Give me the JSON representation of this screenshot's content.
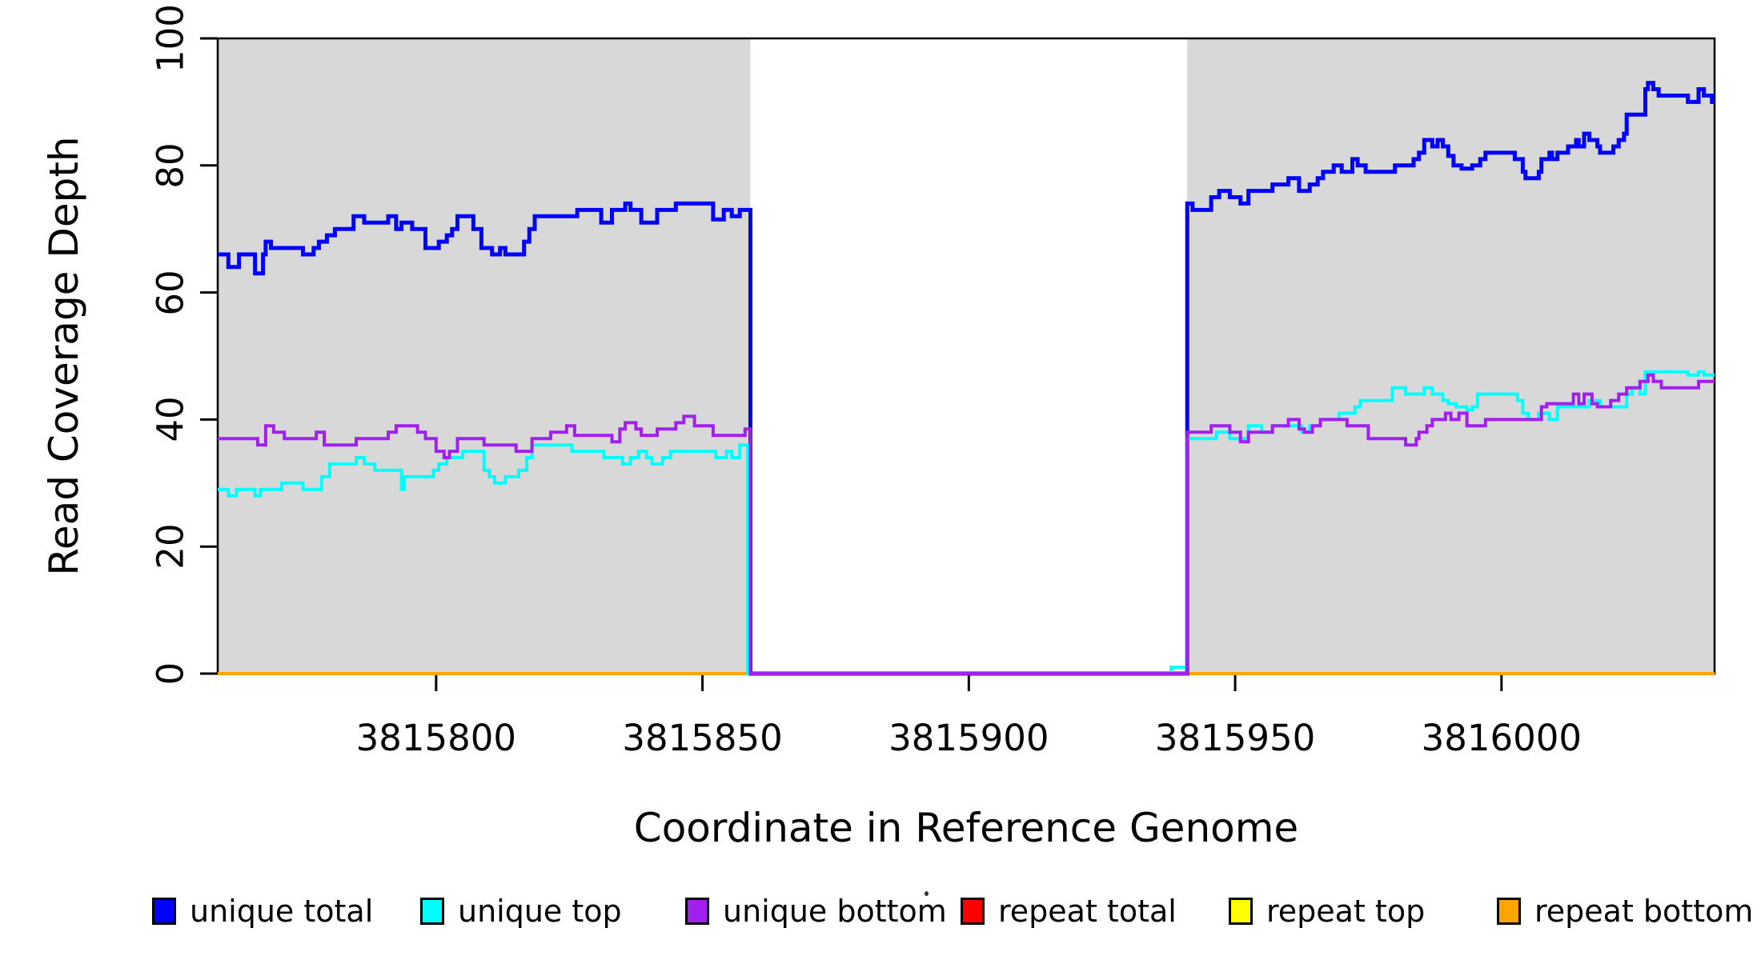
{
  "chart_data": {
    "type": "line",
    "subtype": "step",
    "title": "",
    "xlabel": "Coordinate in Reference Genome",
    "ylabel": "Read Coverage Depth",
    "xlim": [
      3815759,
      3816040
    ],
    "ylim": [
      0,
      100
    ],
    "x_ticks": [
      3815800,
      3815850,
      3815900,
      3815950,
      3816000
    ],
    "y_ticks": [
      0,
      20,
      40,
      60,
      80,
      100
    ],
    "grid": false,
    "legend_position": "bottom",
    "shading_color": "#d8d8d8",
    "shaded_regions": [
      [
        3815759,
        3815859
      ],
      [
        3815941,
        3816040
      ]
    ],
    "uncovered_gap": [
      3815859,
      3815941
    ],
    "legend": [
      {
        "label": "unique total",
        "color": "#0000ff"
      },
      {
        "label": "unique top",
        "color": "#00ffff"
      },
      {
        "label": "unique bottom",
        "color": "#a020f0"
      },
      {
        "label": "repeat total",
        "color": "#ff0000"
      },
      {
        "label": "repeat top",
        "color": "#ffff00"
      },
      {
        "label": "repeat bottom",
        "color": "#ffa500"
      }
    ],
    "series": [
      {
        "name": "repeat total",
        "color": "#ff0000",
        "width": 4,
        "points": [
          [
            3815759,
            0
          ]
        ]
      },
      {
        "name": "repeat top",
        "color": "#ffff00",
        "width": 4,
        "points": [
          [
            3815759,
            0
          ]
        ]
      },
      {
        "name": "repeat bottom",
        "color": "#ffa500",
        "width": 4,
        "points": [
          [
            3815759,
            0
          ]
        ]
      },
      {
        "name": "unique total",
        "color": "#0000ff",
        "width": 5,
        "points": [
          [
            3815759,
            66
          ],
          [
            3815761,
            64
          ],
          [
            3815763,
            66
          ],
          [
            3815766,
            63
          ],
          [
            3815767.5,
            66
          ],
          [
            3815768,
            68
          ],
          [
            3815769,
            67
          ],
          [
            3815775,
            66
          ],
          [
            3815777,
            67
          ],
          [
            3815778,
            68
          ],
          [
            3815779.5,
            69
          ],
          [
            3815781,
            70
          ],
          [
            3815784.5,
            72
          ],
          [
            3815786.5,
            71
          ],
          [
            3815791,
            72
          ],
          [
            3815792.5,
            70
          ],
          [
            3815793.5,
            71
          ],
          [
            3815795.5,
            70
          ],
          [
            3815798,
            67
          ],
          [
            3815800.5,
            68
          ],
          [
            3815802,
            69
          ],
          [
            3815803,
            70
          ],
          [
            3815804,
            72
          ],
          [
            3815807,
            70
          ],
          [
            3815808.5,
            67
          ],
          [
            3815810.5,
            66
          ],
          [
            3815812,
            67
          ],
          [
            3815813,
            66
          ],
          [
            3815816.5,
            68
          ],
          [
            3815817.5,
            70
          ],
          [
            3815818.5,
            72
          ],
          [
            3815826.5,
            73
          ],
          [
            3815831,
            71
          ],
          [
            3815833,
            73
          ],
          [
            3815835.5,
            74
          ],
          [
            3815836.5,
            73
          ],
          [
            3815838.5,
            71
          ],
          [
            3815841.5,
            73
          ],
          [
            3815845,
            74
          ],
          [
            3815852,
            71.5
          ],
          [
            3815854,
            73
          ],
          [
            3815855.5,
            72
          ],
          [
            3815857,
            73
          ],
          [
            3815859,
            0
          ],
          [
            3815941,
            74
          ],
          [
            3815942,
            73
          ],
          [
            3815945.5,
            75
          ],
          [
            3815947,
            76
          ],
          [
            3815949,
            75
          ],
          [
            3815951,
            74
          ],
          [
            3815952.5,
            76
          ],
          [
            3815957,
            77
          ],
          [
            3815960,
            78
          ],
          [
            3815962,
            76
          ],
          [
            3815964,
            77
          ],
          [
            3815965.5,
            78
          ],
          [
            3815966.5,
            79
          ],
          [
            3815968.5,
            80
          ],
          [
            3815970,
            79
          ],
          [
            3815972,
            81
          ],
          [
            3815973,
            80
          ],
          [
            3815974.5,
            79
          ],
          [
            3815980,
            80
          ],
          [
            3815983.5,
            81
          ],
          [
            3815984.5,
            82
          ],
          [
            3815985.5,
            84
          ],
          [
            3815987,
            83
          ],
          [
            3815988,
            84
          ],
          [
            3815989,
            83
          ],
          [
            3815990,
            81.5
          ],
          [
            3815991,
            80
          ],
          [
            3815992.5,
            79.5
          ],
          [
            3815994.5,
            80
          ],
          [
            3815996,
            81
          ],
          [
            3815997,
            82
          ],
          [
            3816002.5,
            81
          ],
          [
            3816004,
            79
          ],
          [
            3816004.5,
            78
          ],
          [
            3816007,
            79
          ],
          [
            3816007.5,
            81
          ],
          [
            3816009,
            82
          ],
          [
            3816009.5,
            81
          ],
          [
            3816010.5,
            82
          ],
          [
            3816012.5,
            83
          ],
          [
            3816014,
            84
          ],
          [
            3816014.5,
            83
          ],
          [
            3816015.5,
            85
          ],
          [
            3816016.5,
            84
          ],
          [
            3816018,
            83
          ],
          [
            3816018.5,
            82
          ],
          [
            3816021,
            83
          ],
          [
            3816022,
            84
          ],
          [
            3816023,
            85
          ],
          [
            3816023.5,
            88
          ],
          [
            3816027,
            92
          ],
          [
            3816027.5,
            93
          ],
          [
            3816028.5,
            92
          ],
          [
            3816029.5,
            91
          ],
          [
            3816035,
            90
          ],
          [
            3816037,
            92
          ],
          [
            3816038,
            91
          ],
          [
            3816039.5,
            90
          ]
        ]
      },
      {
        "name": "unique top",
        "color": "#00ffff",
        "width": 4,
        "points": [
          [
            3815759,
            29
          ],
          [
            3815761,
            28
          ],
          [
            3815762.5,
            29
          ],
          [
            3815766,
            28
          ],
          [
            3815767,
            29
          ],
          [
            3815771,
            30
          ],
          [
            3815775,
            29
          ],
          [
            3815778.5,
            31
          ],
          [
            3815780,
            33
          ],
          [
            3815785,
            34
          ],
          [
            3815786.5,
            33
          ],
          [
            3815788.5,
            32
          ],
          [
            3815793.5,
            29
          ],
          [
            3815794,
            31
          ],
          [
            3815799.5,
            32
          ],
          [
            3815800.5,
            33
          ],
          [
            3815802,
            34
          ],
          [
            3815805,
            35
          ],
          [
            3815809,
            32
          ],
          [
            3815810,
            31
          ],
          [
            3815811,
            30
          ],
          [
            3815813,
            31
          ],
          [
            3815815.5,
            32
          ],
          [
            3815817,
            34
          ],
          [
            3815818,
            36
          ],
          [
            3815825.5,
            35
          ],
          [
            3815831.5,
            34
          ],
          [
            3815835,
            33
          ],
          [
            3815836.5,
            34
          ],
          [
            3815838,
            35
          ],
          [
            3815839.5,
            34
          ],
          [
            3815840.5,
            33
          ],
          [
            3815842.5,
            34
          ],
          [
            3815844,
            35
          ],
          [
            3815852.5,
            34
          ],
          [
            3815854.5,
            35
          ],
          [
            3815855.5,
            34
          ],
          [
            3815857,
            36
          ],
          [
            3815858.5,
            0
          ],
          [
            3815938,
            1
          ],
          [
            3815941,
            37
          ],
          [
            3815946.5,
            38
          ],
          [
            3815949,
            37
          ],
          [
            3815952.5,
            39
          ],
          [
            3815955,
            38
          ],
          [
            3815957,
            39
          ],
          [
            3815962.5,
            38
          ],
          [
            3815964,
            39
          ],
          [
            3815966,
            40
          ],
          [
            3815969.5,
            41
          ],
          [
            3815972.5,
            42
          ],
          [
            3815973.5,
            43
          ],
          [
            3815979.5,
            45
          ],
          [
            3815982,
            44
          ],
          [
            3815985.5,
            45
          ],
          [
            3815987,
            44
          ],
          [
            3815989,
            43
          ],
          [
            3815990,
            42.5
          ],
          [
            3815991.5,
            42
          ],
          [
            3815993.5,
            41.5
          ],
          [
            3815994.5,
            42
          ],
          [
            3815995.5,
            44
          ],
          [
            3816003,
            43
          ],
          [
            3816004,
            41
          ],
          [
            3816005,
            40
          ],
          [
            3816007,
            41
          ],
          [
            3816009,
            40
          ],
          [
            3816010.5,
            42
          ],
          [
            3816016.5,
            43
          ],
          [
            3816018.5,
            42
          ],
          [
            3816023.5,
            44
          ],
          [
            3816024.5,
            45
          ],
          [
            3816026,
            44
          ],
          [
            3816027,
            47.5
          ],
          [
            3816035,
            47
          ],
          [
            3816037,
            47.5
          ],
          [
            3816038,
            47
          ]
        ]
      },
      {
        "name": "unique bottom",
        "color": "#a020f0",
        "width": 4,
        "points": [
          [
            3815759,
            37
          ],
          [
            3815766.5,
            36
          ],
          [
            3815768,
            39
          ],
          [
            3815769.5,
            38
          ],
          [
            3815771.5,
            37
          ],
          [
            3815777.5,
            38
          ],
          [
            3815779,
            36
          ],
          [
            3815785,
            37
          ],
          [
            3815791,
            38
          ],
          [
            3815792.5,
            39
          ],
          [
            3815796.5,
            38
          ],
          [
            3815798,
            37
          ],
          [
            3815800,
            35
          ],
          [
            3815801.5,
            34
          ],
          [
            3815802.5,
            35
          ],
          [
            3815804,
            37
          ],
          [
            3815809,
            36
          ],
          [
            3815815,
            35
          ],
          [
            3815818,
            37
          ],
          [
            3815821.5,
            38
          ],
          [
            3815824.5,
            39
          ],
          [
            3815826,
            37.5
          ],
          [
            3815833,
            36.5
          ],
          [
            3815834.5,
            38.5
          ],
          [
            3815835.5,
            39.5
          ],
          [
            3815837.5,
            38.5
          ],
          [
            3815838.5,
            37.5
          ],
          [
            3815841.5,
            38.5
          ],
          [
            3815845,
            39.5
          ],
          [
            3815846.5,
            40.5
          ],
          [
            3815848.5,
            39
          ],
          [
            3815852,
            37.5
          ],
          [
            3815858,
            38.5
          ],
          [
            3815859,
            0
          ],
          [
            3815941,
            38
          ],
          [
            3815945.5,
            39
          ],
          [
            3815949,
            38
          ],
          [
            3815951,
            36.5
          ],
          [
            3815952.5,
            38
          ],
          [
            3815957,
            39
          ],
          [
            3815960,
            40
          ],
          [
            3815962,
            38.5
          ],
          [
            3815963,
            38
          ],
          [
            3815964.5,
            39
          ],
          [
            3815966,
            40
          ],
          [
            3815971,
            39
          ],
          [
            3815975,
            37
          ],
          [
            3815982,
            36
          ],
          [
            3815984,
            37
          ],
          [
            3815984.5,
            38
          ],
          [
            3815986,
            39
          ],
          [
            3815987,
            40
          ],
          [
            3815989.5,
            41
          ],
          [
            3815990.5,
            40
          ],
          [
            3815992,
            41
          ],
          [
            3815993.5,
            39
          ],
          [
            3815997,
            40
          ],
          [
            3816007.5,
            42
          ],
          [
            3816008.5,
            42.5
          ],
          [
            3816013.5,
            44
          ],
          [
            3816014.5,
            42.5
          ],
          [
            3816015.5,
            44
          ],
          [
            3816017,
            42.5
          ],
          [
            3816018,
            42
          ],
          [
            3816020.5,
            43
          ],
          [
            3816022,
            44
          ],
          [
            3816023.5,
            45
          ],
          [
            3816026,
            46
          ],
          [
            3816027.5,
            47
          ],
          [
            3816028.5,
            46
          ],
          [
            3816030,
            45
          ],
          [
            3816037,
            46
          ]
        ]
      }
    ]
  }
}
